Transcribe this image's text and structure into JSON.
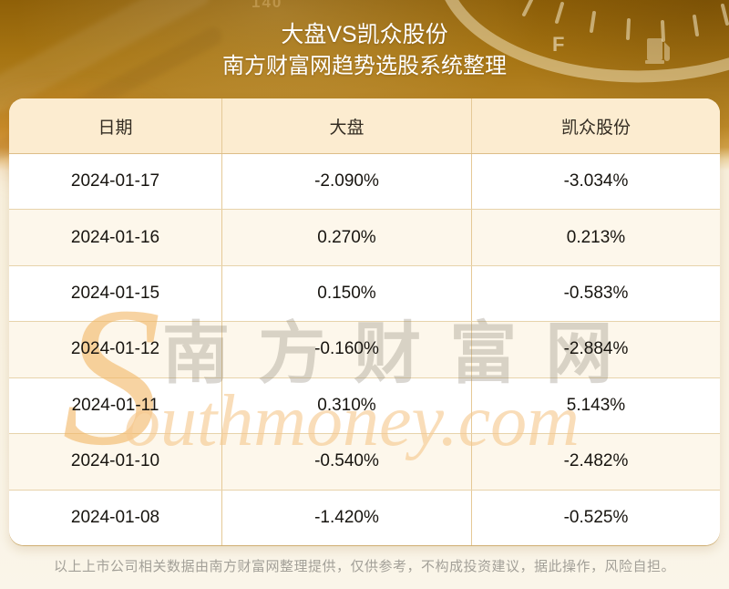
{
  "header": {
    "title": "大盘VS凯众股份",
    "subtitle": "南方财富网趋势选股系统整理"
  },
  "chart_data": {
    "type": "table",
    "title": "大盘VS凯众股份",
    "subtitle": "南方财富网趋势选股系统整理",
    "columns": [
      "日期",
      "大盘",
      "凯众股份"
    ],
    "rows": [
      [
        "2024-01-17",
        "-2.090%",
        "-3.034%"
      ],
      [
        "2024-01-16",
        "0.270%",
        "0.213%"
      ],
      [
        "2024-01-15",
        "0.150%",
        "-0.583%"
      ],
      [
        "2024-01-12",
        "-0.160%",
        "-2.884%"
      ],
      [
        "2024-01-11",
        "0.310%",
        "5.143%"
      ],
      [
        "2024-01-10",
        "-0.540%",
        "-2.482%"
      ],
      [
        "2024-01-08",
        "-1.420%",
        "-0.525%"
      ]
    ]
  },
  "watermark": {
    "initial": "S",
    "cjk": "南方财富网",
    "latin": "outhmoney.com"
  },
  "decor": {
    "gauge_full_label": "F",
    "speedometer_number": "140"
  },
  "footer": {
    "disclaimer": "以上上市公司相关数据由南方财富网整理提供，仅供参考，不构成投资建议，据此操作，风险自担。"
  },
  "colors": {
    "bg_gold_top": "#8f6008",
    "bg_gold_mid": "#bd8a28",
    "bg_cream": "#faf5e9",
    "header_text": "#ffffff",
    "table_header_bg": "#fcecd0",
    "row_bg": "#ffffff",
    "row_alt_bg": "#fdf7eb",
    "divider": "#e5c996",
    "cell_text": "#17140f",
    "disclaimer_text": "#a3a098",
    "watermark_orange": "#f3b765"
  }
}
